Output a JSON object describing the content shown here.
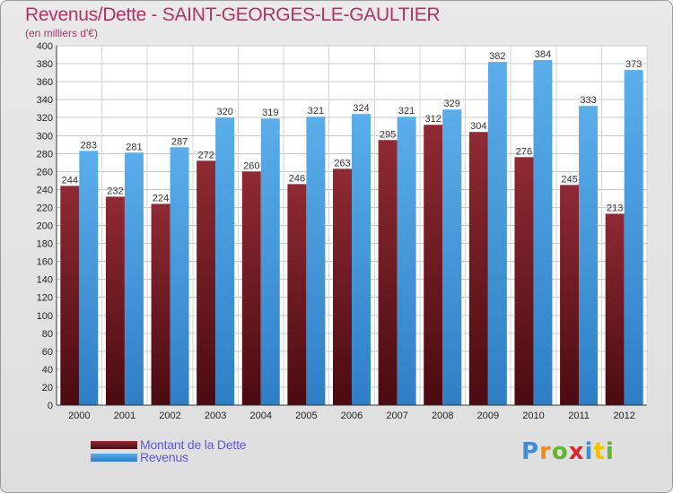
{
  "header": {
    "title": "Revenus/Dette - SAINT-GEORGES-LE-GAULTIER",
    "subtitle": "(en milliers d'€)"
  },
  "chart_data": {
    "type": "bar",
    "categories": [
      "2000",
      "2001",
      "2002",
      "2003",
      "2004",
      "2005",
      "2006",
      "2007",
      "2008",
      "2009",
      "2010",
      "2011",
      "2012"
    ],
    "series": [
      {
        "name": "Montant de la Dette",
        "values": [
          244,
          232,
          224,
          272,
          260,
          246,
          263,
          295,
          312,
          304,
          276,
          245,
          213
        ],
        "color": "#7a1f27"
      },
      {
        "name": "Revenus",
        "values": [
          283,
          281,
          287,
          320,
          319,
          321,
          324,
          321,
          329,
          382,
          384,
          333,
          373
        ],
        "color": "#4fa3e2"
      }
    ],
    "ylim": [
      0,
      400
    ],
    "ytick_step": 20,
    "grid": true,
    "legend": "bottom-left"
  },
  "colors": {
    "title": "#b0336a",
    "legend_text": "#5a5adc"
  },
  "logo": {
    "letters": [
      "P",
      "r",
      "o",
      "x",
      "i",
      "t",
      "i"
    ],
    "colors": [
      "#3f8fd6",
      "#f08a1c",
      "#67b32e",
      "#d8262b",
      "#3f8fd6",
      "#f2c200",
      "#67b32e"
    ]
  }
}
